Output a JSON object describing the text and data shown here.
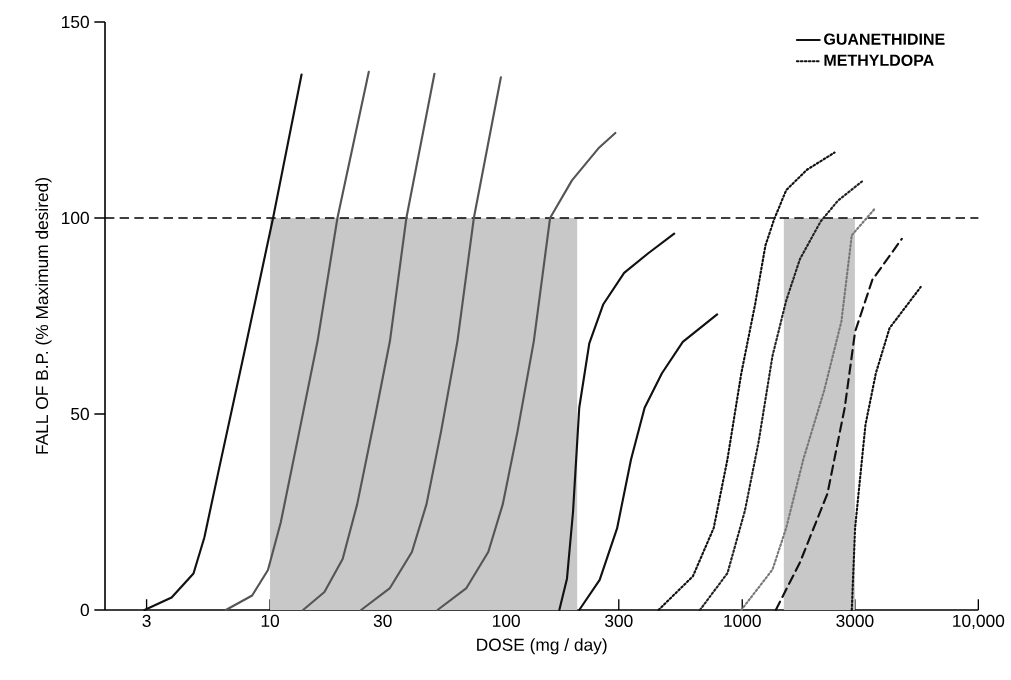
{
  "chart_data": {
    "type": "line",
    "xlabel": "DOSE (mg / day)",
    "ylabel": "FALL OF B.P. (% Maximum desired)",
    "log": "x",
    "xlim": [
      2,
      10000
    ],
    "ylim": [
      0,
      150
    ],
    "xticks": [
      3,
      10,
      30,
      100,
      300,
      1000,
      3000,
      {
        "value": 10000,
        "label": "10,000"
      }
    ],
    "yticks": [
      0,
      50,
      100,
      150
    ],
    "grid": false,
    "legend": "top right",
    "marker": "none",
    "ref_lines": [
      {
        "axis": "y",
        "value": 100,
        "line_style": "dashed",
        "color": "#000000"
      }
    ],
    "bands": [
      {
        "axis": "x",
        "from": 10,
        "to": 200,
        "color": "#c8c8c8"
      },
      {
        "axis": "x",
        "from": 1500,
        "to": 3000,
        "color": "#c8c8c8"
      }
    ],
    "series": [
      {
        "name": "GUANETHIDINE",
        "color": "#111111",
        "line_style": "solid",
        "x": [
          2.94,
          3.83,
          4.74,
          5.27,
          6.08,
          7.8,
          10.3,
          13.6
        ],
        "values": [
          0,
          3.2,
          9.3,
          18.5,
          36,
          66,
          100,
          136.6
        ]
      },
      {
        "color": "#555555",
        "line_style": "solid",
        "x": [
          6.5,
          8.4,
          9.8,
          11.1,
          13.3,
          15.9,
          19.3,
          26.2
        ],
        "values": [
          0,
          3.7,
          10.2,
          22.3,
          45.5,
          68.6,
          100,
          137.3
        ]
      },
      {
        "color": "#555555",
        "line_style": "solid",
        "x": [
          13.8,
          17,
          20.3,
          23.4,
          28,
          32.2,
          37.8,
          49.7
        ],
        "values": [
          0,
          4.6,
          13,
          27,
          50,
          68.6,
          100,
          136.8
        ]
      },
      {
        "color": "#555555",
        "line_style": "solid",
        "x": [
          24.3,
          32.2,
          39.9,
          46,
          53,
          62.2,
          73,
          95
        ],
        "values": [
          0,
          5.6,
          14.8,
          27,
          45.5,
          68.6,
          100,
          135.9
        ]
      },
      {
        "color": "#555555",
        "line_style": "solid",
        "x": [
          51.2,
          67.9,
          84,
          96.8,
          111.7,
          131,
          153.5,
          190,
          248,
          290
        ],
        "values": [
          0,
          5.6,
          14.8,
          27,
          45.5,
          68.6,
          100,
          109.6,
          118,
          121.7
        ]
      },
      {
        "color": "#111111",
        "line_style": "solid",
        "x": [
          168,
          181,
          192,
          204,
          225,
          258,
          316,
          400,
          515
        ],
        "values": [
          0,
          8,
          25,
          51.6,
          68,
          78,
          86,
          91,
          96
        ]
      },
      {
        "color": "#111111",
        "line_style": "solid",
        "x": [
          204,
          249,
          295,
          338,
          386,
          457,
          560,
          783
        ],
        "values": [
          0,
          7.7,
          20.8,
          38.4,
          51.6,
          60.4,
          68.4,
          75.4
        ]
      },
      {
        "name": "METHYLDOPA",
        "color": "#111111",
        "line_style": "dotted",
        "x": [
          442,
          618,
          757,
          866,
          991,
          1134,
          1254,
          1364,
          1535,
          1879,
          2460
        ],
        "values": [
          0,
          8.6,
          20.9,
          38.5,
          60.4,
          78,
          93,
          99.6,
          107.1,
          112.3,
          116.7
        ]
      },
      {
        "color": "#222222",
        "line_style": "dotted",
        "x": [
          662,
          866,
          1026,
          1173,
          1343,
          1535,
          1755,
          2148,
          2541,
          3214
        ],
        "values": [
          0,
          9.4,
          25.3,
          42.9,
          64.8,
          78.9,
          89.5,
          99.1,
          104.4,
          109.3
        ]
      },
      {
        "color": "#777777",
        "line_style": "dotted",
        "x": [
          991,
          1343,
          1535,
          1816,
          2223,
          2630,
          2911,
          3622
        ],
        "values": [
          0,
          10.3,
          20.9,
          38.5,
          56,
          73.6,
          95.6,
          102.2
        ]
      },
      {
        "color": "#111111",
        "line_style": "dashed",
        "x": [
          1387,
          1755,
          2296,
          2717,
          3006,
          3556,
          4742
        ],
        "values": [
          0,
          12.1,
          29.7,
          51.6,
          71,
          84.2,
          94.7
        ]
      },
      {
        "color": "#111111",
        "line_style": "dotted",
        "x": [
          2911,
          3006,
          3327,
          3681,
          4207,
          4656,
          5702
        ],
        "values": [
          0,
          20.9,
          47.3,
          60.4,
          71.9,
          75.4,
          82.4
        ]
      }
    ]
  }
}
